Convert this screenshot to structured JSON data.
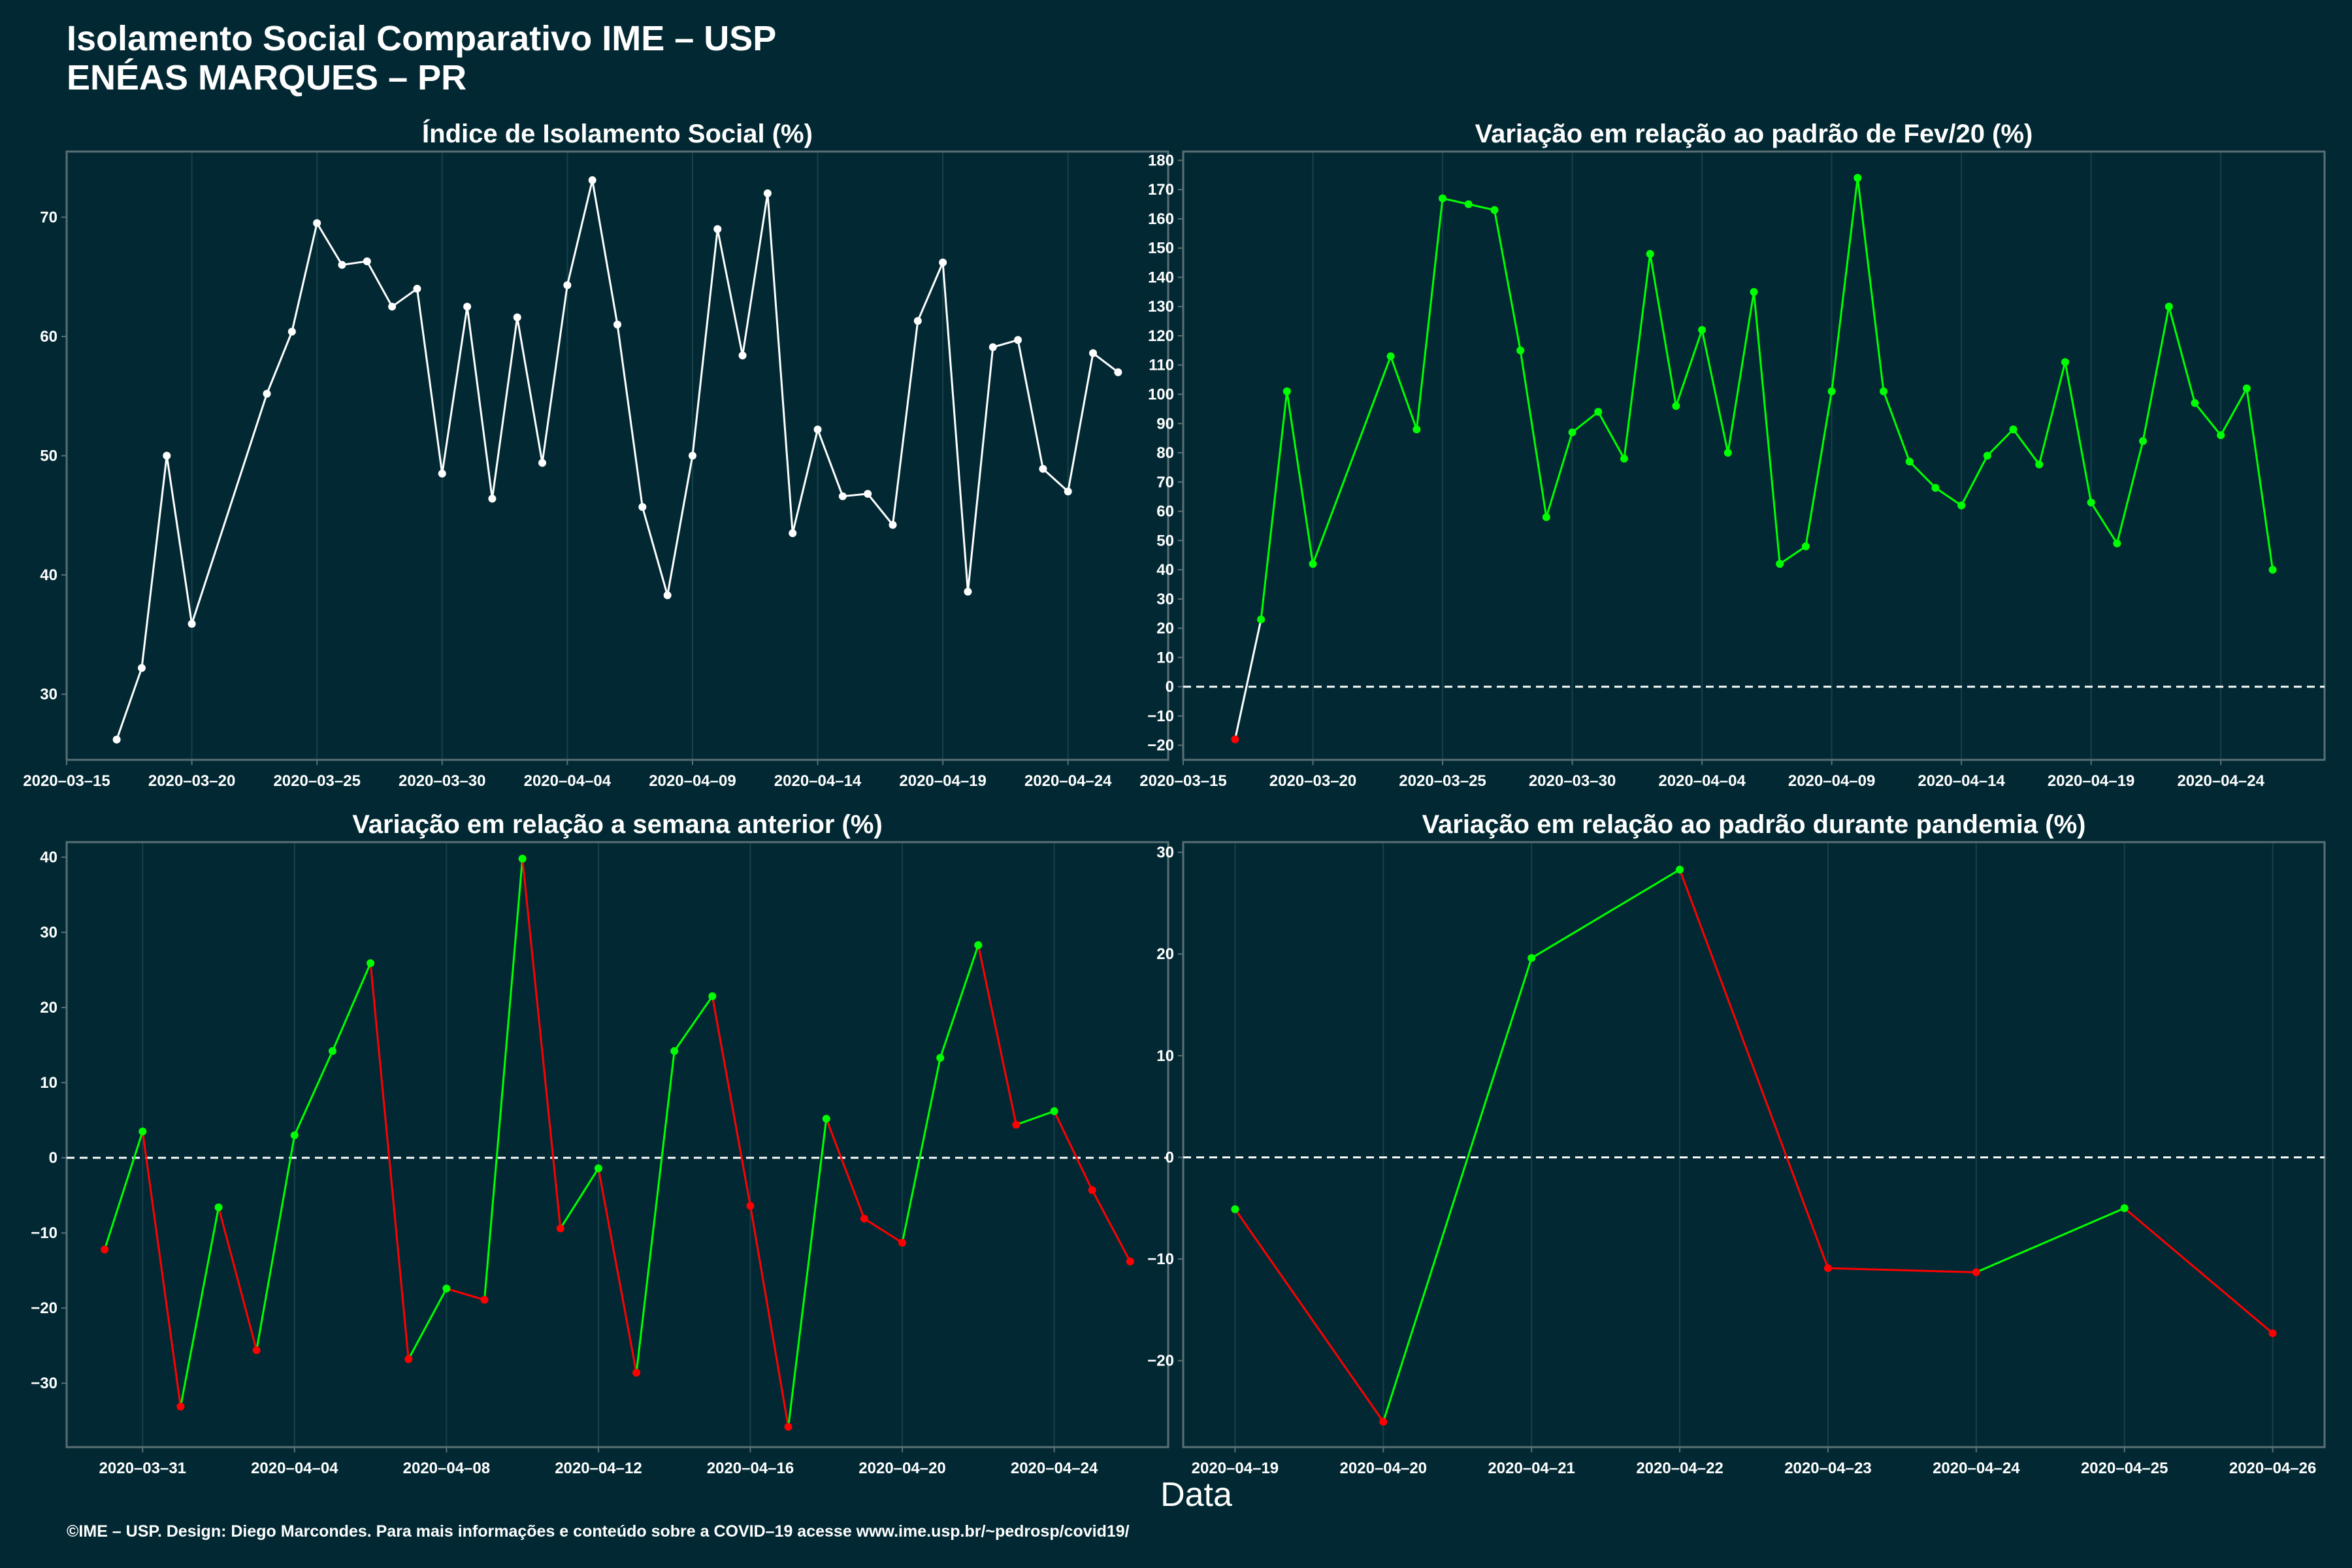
{
  "title_line1": "Isolamento Social Comparativo IME – USP",
  "title_line2": "ENÉAS MARQUES – PR",
  "xlabel": "Data",
  "footer": "©IME – USP. Design: Diego Marcondes. Para mais informações e conteúdo sobre a COVID–19 acesse www.ime.usp.br/~pedrosp/covid19/",
  "colors": {
    "background": "#022933",
    "positive": "#00ff00",
    "negative": "#ff0000",
    "neutral": "#ffffff",
    "frame": "#5a6f75",
    "grid": "#17414a"
  },
  "chart_data": [
    {
      "type": "line",
      "title": "Índice de Isolamento Social (%)",
      "x_type": "date",
      "xlim": [
        "2020-03-15",
        "2020-04-28"
      ],
      "xticks": [
        "2020-03-15",
        "2020-03-20",
        "2020-03-25",
        "2020-03-30",
        "2020-04-04",
        "2020-04-09",
        "2020-04-14",
        "2020-04-19",
        "2020-04-24"
      ],
      "ylim": [
        24.5,
        75.5
      ],
      "yticks": [
        30,
        40,
        50,
        60,
        70
      ],
      "coloring": "single",
      "x": [
        "2020-03-17",
        "2020-03-18",
        "2020-03-19",
        "2020-03-20",
        "2020-03-23",
        "2020-03-24",
        "2020-03-25",
        "2020-03-26",
        "2020-03-27",
        "2020-03-28",
        "2020-03-29",
        "2020-03-30",
        "2020-03-31",
        "2020-04-01",
        "2020-04-02",
        "2020-04-03",
        "2020-04-04",
        "2020-04-05",
        "2020-04-06",
        "2020-04-07",
        "2020-04-08",
        "2020-04-09",
        "2020-04-10",
        "2020-04-11",
        "2020-04-12",
        "2020-04-13",
        "2020-04-14",
        "2020-04-15",
        "2020-04-16",
        "2020-04-17",
        "2020-04-18",
        "2020-04-19",
        "2020-04-20",
        "2020-04-21",
        "2020-04-22",
        "2020-04-23",
        "2020-04-24",
        "2020-04-25",
        "2020-04-26"
      ],
      "values": [
        26.2,
        32.2,
        50.0,
        35.9,
        55.2,
        60.4,
        69.5,
        66.0,
        66.3,
        62.5,
        64.0,
        48.5,
        62.5,
        46.4,
        61.6,
        49.4,
        64.3,
        73.1,
        61.0,
        45.7,
        38.3,
        50.0,
        69.0,
        58.4,
        72.0,
        43.5,
        52.2,
        46.6,
        46.8,
        44.2,
        61.3,
        66.2,
        38.6,
        59.1,
        59.7,
        48.9,
        47.0,
        58.6,
        57.0
      ]
    },
    {
      "type": "line",
      "title": "Variação em relação ao padrão de Fev/20 (%)",
      "x_type": "date",
      "xlim": [
        "2020-03-15",
        "2020-04-28"
      ],
      "xticks": [
        "2020-03-15",
        "2020-03-20",
        "2020-03-25",
        "2020-03-30",
        "2020-04-04",
        "2020-04-09",
        "2020-04-14",
        "2020-04-19",
        "2020-04-24"
      ],
      "ylim": [
        -25,
        183
      ],
      "yticks": [
        -20,
        -10,
        0,
        10,
        20,
        30,
        40,
        50,
        60,
        70,
        80,
        90,
        100,
        110,
        120,
        130,
        140,
        150,
        160,
        170,
        180
      ],
      "zero_line": true,
      "coloring": "sign_trend",
      "x": [
        "2020-03-17",
        "2020-03-18",
        "2020-03-19",
        "2020-03-20",
        "2020-03-23",
        "2020-03-24",
        "2020-03-25",
        "2020-03-26",
        "2020-03-27",
        "2020-03-28",
        "2020-03-29",
        "2020-03-30",
        "2020-03-31",
        "2020-04-01",
        "2020-04-02",
        "2020-04-03",
        "2020-04-04",
        "2020-04-05",
        "2020-04-06",
        "2020-04-07",
        "2020-04-08",
        "2020-04-09",
        "2020-04-10",
        "2020-04-11",
        "2020-04-12",
        "2020-04-13",
        "2020-04-14",
        "2020-04-15",
        "2020-04-16",
        "2020-04-17",
        "2020-04-18",
        "2020-04-19",
        "2020-04-20",
        "2020-04-21",
        "2020-04-22",
        "2020-04-23",
        "2020-04-24",
        "2020-04-25",
        "2020-04-26"
      ],
      "values": [
        -18,
        23,
        101,
        42,
        113,
        88,
        167,
        165,
        163,
        115,
        58,
        87,
        94,
        78,
        148,
        96,
        122,
        80,
        135,
        42,
        48,
        101,
        174,
        101,
        77,
        68,
        62,
        79,
        88,
        76,
        111,
        63,
        49,
        84,
        130,
        97,
        86,
        102,
        40
      ]
    },
    {
      "type": "line",
      "title": "Variação em relação a semana anterior (%)",
      "x_type": "date",
      "xlim": [
        "2020-03-29",
        "2020-04-27"
      ],
      "xticks": [
        "2020-03-31",
        "2020-04-04",
        "2020-04-08",
        "2020-04-12",
        "2020-04-16",
        "2020-04-20",
        "2020-04-24"
      ],
      "ylim": [
        -38.5,
        42
      ],
      "yticks": [
        -30,
        -20,
        -10,
        0,
        10,
        20,
        30,
        40
      ],
      "zero_line": true,
      "coloring": "trend",
      "x": [
        "2020-03-30",
        "2020-03-31",
        "2020-04-01",
        "2020-04-02",
        "2020-04-03",
        "2020-04-04",
        "2020-04-05",
        "2020-04-06",
        "2020-04-07",
        "2020-04-08",
        "2020-04-09",
        "2020-04-10",
        "2020-04-11",
        "2020-04-12",
        "2020-04-13",
        "2020-04-14",
        "2020-04-15",
        "2020-04-16",
        "2020-04-17",
        "2020-04-18",
        "2020-04-19",
        "2020-04-20",
        "2020-04-21",
        "2020-04-22",
        "2020-04-23",
        "2020-04-24",
        "2020-04-25",
        "2020-04-26"
      ],
      "values": [
        -12.2,
        3.5,
        -33.1,
        -6.6,
        -25.6,
        3.0,
        14.2,
        25.9,
        -26.8,
        -17.4,
        -18.9,
        39.8,
        -9.4,
        -1.4,
        -28.6,
        14.2,
        21.5,
        -6.4,
        -35.8,
        5.2,
        -8.1,
        -11.3,
        13.3,
        28.3,
        4.4,
        6.2,
        -4.3,
        -13.8
      ]
    },
    {
      "type": "line",
      "title": "Variação em relação ao padrão durante pandemia (%)",
      "x_type": "date",
      "xlim": [
        "2020-04-18.65",
        "2020-04-26.35"
      ],
      "xticks": [
        "2020-04-19",
        "2020-04-20",
        "2020-04-21",
        "2020-04-22",
        "2020-04-23",
        "2020-04-24",
        "2020-04-25",
        "2020-04-26"
      ],
      "ylim": [
        -28.5,
        31
      ],
      "yticks": [
        -20,
        -10,
        0,
        10,
        20,
        30
      ],
      "zero_line": true,
      "coloring": "trend",
      "x": [
        "2020-04-19",
        "2020-04-20",
        "2020-04-21",
        "2020-04-22",
        "2020-04-23",
        "2020-04-24",
        "2020-04-25",
        "2020-04-26"
      ],
      "values": [
        -5.1,
        -26.0,
        19.6,
        28.3,
        -10.9,
        -11.3,
        -5.0,
        -17.3
      ]
    }
  ]
}
